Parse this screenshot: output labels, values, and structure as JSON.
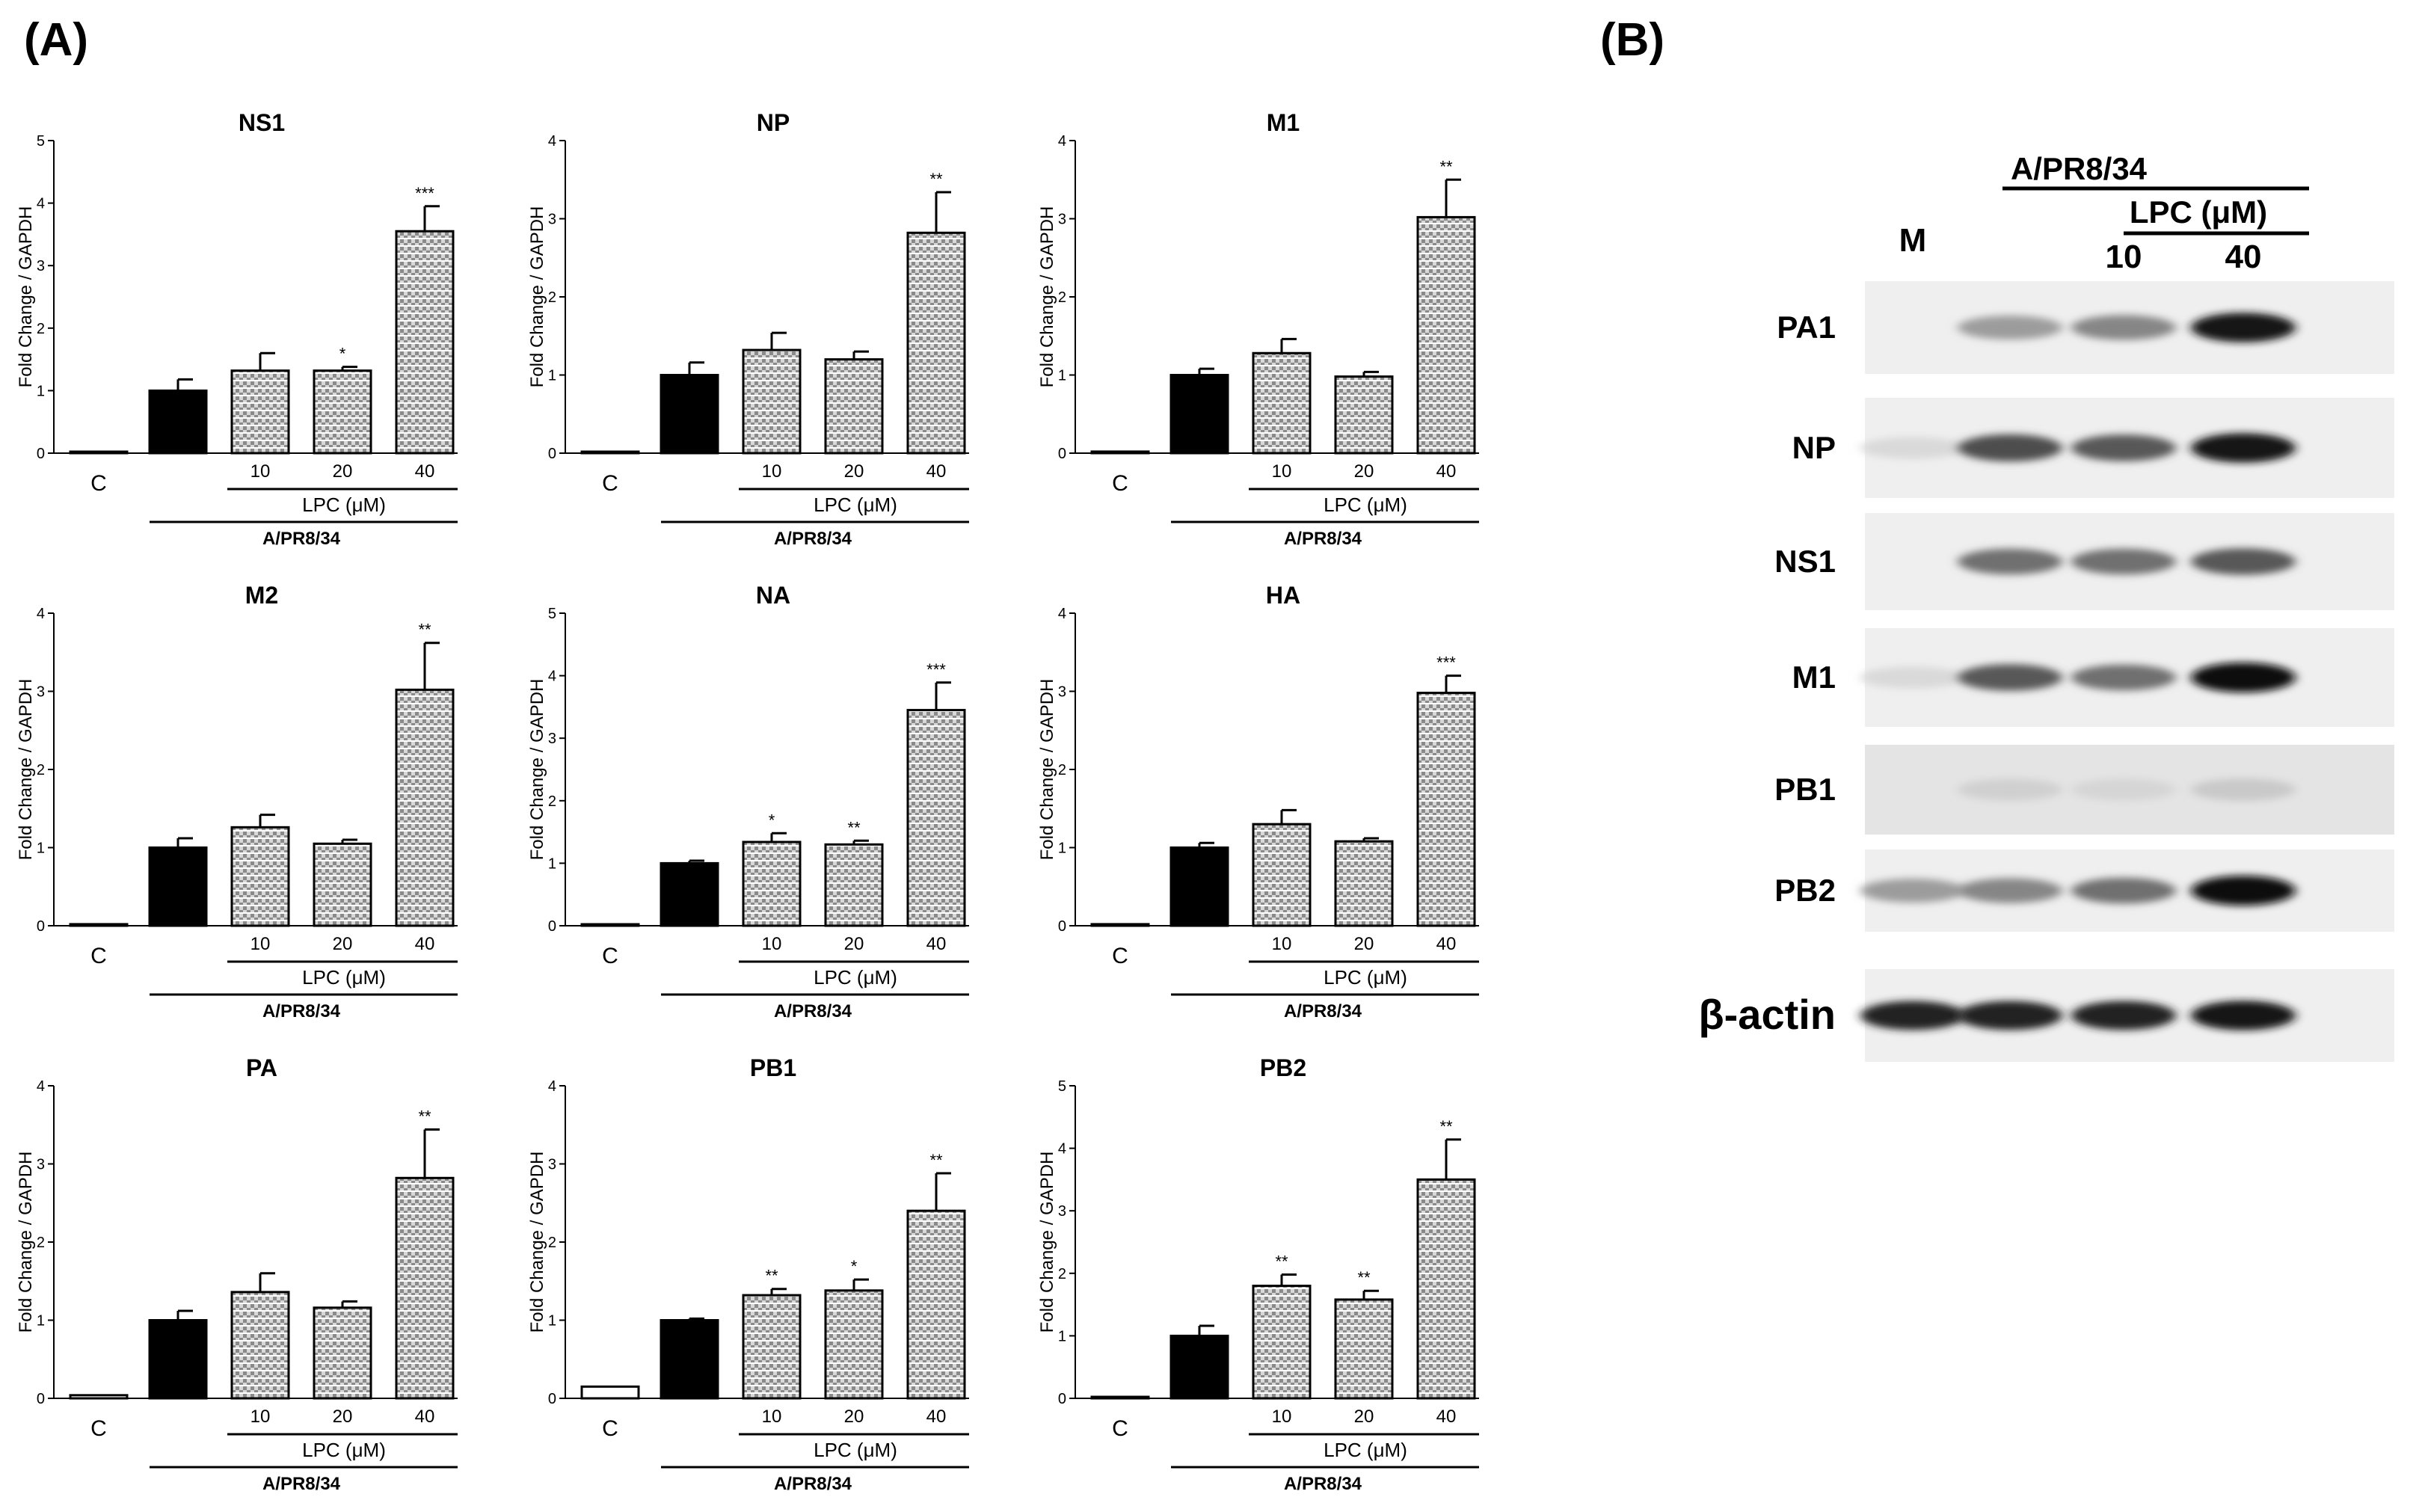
{
  "panels": {
    "a_label": "(A)",
    "b_label": "(B)"
  },
  "chart_data": [
    {
      "type": "bar",
      "title": "NS1",
      "ylabel": "Fold Change / GAPDH",
      "ylim": [
        0,
        5
      ],
      "yticks": [
        "0",
        "1",
        "2",
        "3",
        "4",
        "5"
      ],
      "categories": [
        "C",
        "",
        "10",
        "20",
        "40"
      ],
      "values": [
        0.02,
        1.0,
        1.32,
        1.32,
        3.55
      ],
      "errors": [
        0,
        0.18,
        0.28,
        0.06,
        0.4
      ],
      "significance": [
        "",
        "",
        "",
        "*",
        "***"
      ],
      "group_label": "LPC (μM)",
      "virus_label": "A/PR8/34"
    },
    {
      "type": "bar",
      "title": "NP",
      "ylabel": "Fold Change / GAPDH",
      "ylim": [
        0,
        4
      ],
      "yticks": [
        "0",
        "1",
        "2",
        "3",
        "4"
      ],
      "categories": [
        "C",
        "",
        "10",
        "20",
        "40"
      ],
      "values": [
        0,
        1.0,
        1.32,
        1.2,
        2.82
      ],
      "errors": [
        0,
        0.16,
        0.22,
        0.1,
        0.52
      ],
      "significance": [
        "",
        "",
        "",
        "",
        "**"
      ],
      "group_label": "LPC (μM)",
      "virus_label": "A/PR8/34"
    },
    {
      "type": "bar",
      "title": "M1",
      "ylabel": "Fold Change / GAPDH",
      "ylim": [
        0,
        4
      ],
      "yticks": [
        "0",
        "1",
        "2",
        "3",
        "4"
      ],
      "categories": [
        "C",
        "",
        "10",
        "20",
        "40"
      ],
      "values": [
        0.02,
        1.0,
        1.28,
        0.98,
        3.02
      ],
      "errors": [
        0,
        0.08,
        0.18,
        0.06,
        0.48
      ],
      "significance": [
        "",
        "",
        "",
        "",
        "**"
      ],
      "group_label": "LPC (μM)",
      "virus_label": "A/PR8/34"
    },
    {
      "type": "bar",
      "title": "M2",
      "ylabel": "Fold Change / GAPDH",
      "ylim": [
        0,
        4
      ],
      "yticks": [
        "0",
        "1",
        "2",
        "3",
        "4"
      ],
      "categories": [
        "C",
        "",
        "10",
        "20",
        "40"
      ],
      "values": [
        0.02,
        1.0,
        1.26,
        1.05,
        3.02
      ],
      "errors": [
        0,
        0.12,
        0.16,
        0.05,
        0.6
      ],
      "significance": [
        "",
        "",
        "",
        "",
        "**"
      ],
      "group_label": "LPC (μM)",
      "virus_label": "A/PR8/34"
    },
    {
      "type": "bar",
      "title": "NA",
      "ylabel": "Fold Change / GAPDH",
      "ylim": [
        0,
        5
      ],
      "yticks": [
        "0",
        "1",
        "2",
        "3",
        "4",
        "5"
      ],
      "categories": [
        "C",
        "",
        "10",
        "20",
        "40"
      ],
      "values": [
        0.02,
        1.0,
        1.34,
        1.3,
        3.45
      ],
      "errors": [
        0,
        0.04,
        0.14,
        0.06,
        0.44
      ],
      "significance": [
        "",
        "",
        "*",
        "**",
        "***"
      ],
      "group_label": "LPC (μM)",
      "virus_label": "A/PR8/34"
    },
    {
      "type": "bar",
      "title": "HA",
      "ylabel": "Fold Change / GAPDH",
      "ylim": [
        0,
        4
      ],
      "yticks": [
        "0",
        "1",
        "2",
        "3",
        "4"
      ],
      "categories": [
        "C",
        "",
        "10",
        "20",
        "40"
      ],
      "values": [
        0.02,
        1.0,
        1.3,
        1.08,
        2.98
      ],
      "errors": [
        0,
        0.06,
        0.18,
        0.04,
        0.22
      ],
      "significance": [
        "",
        "",
        "",
        "",
        "***"
      ],
      "group_label": "LPC (μM)",
      "virus_label": "A/PR8/34"
    },
    {
      "type": "bar",
      "title": "PA",
      "ylabel": "Fold Change / GAPDH",
      "ylim": [
        0,
        4
      ],
      "yticks": [
        "0",
        "1",
        "2",
        "3",
        "4"
      ],
      "categories": [
        "C",
        "",
        "10",
        "20",
        "40"
      ],
      "values": [
        0.04,
        1.0,
        1.36,
        1.16,
        2.82
      ],
      "errors": [
        0,
        0.12,
        0.24,
        0.08,
        0.62
      ],
      "significance": [
        "",
        "",
        "",
        "",
        "**"
      ],
      "group_label": "LPC (μM)",
      "virus_label": "A/PR8/34"
    },
    {
      "type": "bar",
      "title": "PB1",
      "ylabel": "Fold Change / GAPDH",
      "ylim": [
        0,
        4
      ],
      "yticks": [
        "0",
        "1",
        "2",
        "3",
        "4"
      ],
      "categories": [
        "C",
        "",
        "10",
        "20",
        "40"
      ],
      "values": [
        0.15,
        1.0,
        1.32,
        1.38,
        2.4
      ],
      "errors": [
        0,
        0.02,
        0.08,
        0.14,
        0.48
      ],
      "significance": [
        "",
        "",
        "**",
        "*",
        "**"
      ],
      "group_label": "LPC (μM)",
      "virus_label": "A/PR8/34"
    },
    {
      "type": "bar",
      "title": "PB2",
      "ylabel": "Fold Change / GAPDH",
      "ylim": [
        0,
        5
      ],
      "yticks": [
        "0",
        "1",
        "2",
        "3",
        "4",
        "5"
      ],
      "categories": [
        "C",
        "",
        "10",
        "20",
        "40"
      ],
      "values": [
        0,
        1.0,
        1.8,
        1.58,
        3.5
      ],
      "errors": [
        0,
        0.16,
        0.18,
        0.14,
        0.64
      ],
      "significance": [
        "",
        "",
        "**",
        "**",
        "**"
      ],
      "group_label": "LPC (μM)",
      "virus_label": "A/PR8/34"
    }
  ],
  "blot": {
    "header_virus": "A/PR8/34",
    "header_lpc": "LPC (μM)",
    "lane_labels": [
      "M",
      "",
      "10",
      "40"
    ],
    "rows": [
      {
        "name": "PA1",
        "intensity": [
          0,
          0.35,
          0.45,
          0.95
        ]
      },
      {
        "name": "NP",
        "intensity": [
          0.08,
          0.7,
          0.65,
          0.95
        ]
      },
      {
        "name": "NS1",
        "intensity": [
          0,
          0.55,
          0.55,
          0.65
        ]
      },
      {
        "name": "M1",
        "intensity": [
          0.08,
          0.65,
          0.55,
          1.0
        ]
      },
      {
        "name": "PB1",
        "intensity": [
          0,
          0.12,
          0.1,
          0.15
        ]
      },
      {
        "name": "PB2",
        "intensity": [
          0.35,
          0.45,
          0.55,
          1.0
        ]
      },
      {
        "name": "β-actin",
        "intensity": [
          0.9,
          0.9,
          0.9,
          0.95
        ]
      }
    ]
  }
}
